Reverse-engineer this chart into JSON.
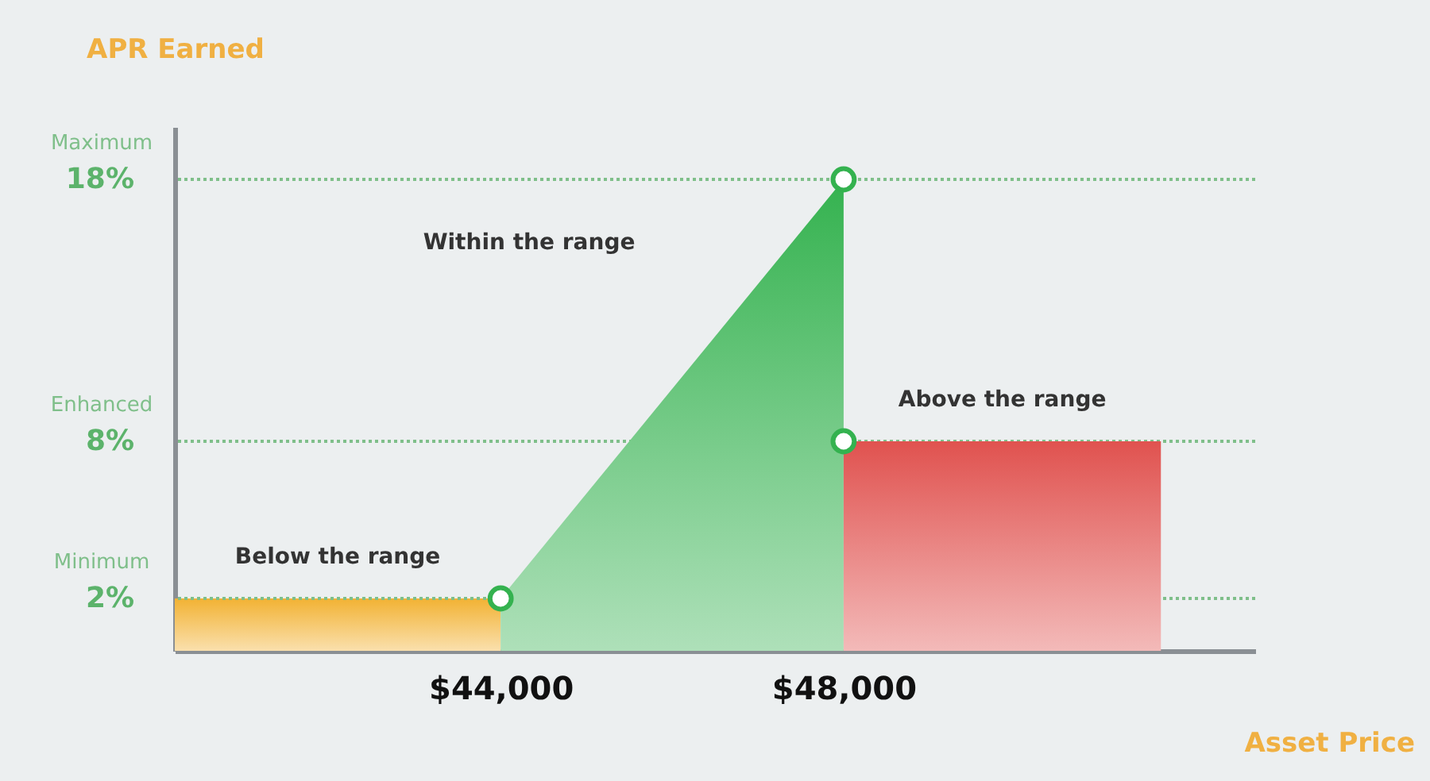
{
  "chart_data": {
    "type": "area",
    "xlabel": "Asset Price",
    "ylabel": "APR Earned",
    "xlim": [
      40200,
      52800
    ],
    "xticks": [
      {
        "value": 44000,
        "label": "$44,000"
      },
      {
        "value": 48000,
        "label": "$48,000"
      }
    ],
    "ylim": [
      0,
      20
    ],
    "yticks": [
      {
        "value": 2,
        "label": "2%"
      },
      {
        "value": 8,
        "label": "8%"
      },
      {
        "value": 18,
        "label": "18%"
      }
    ],
    "series": [
      {
        "color": "#f2b233",
        "x": [
          40200,
          44000
        ],
        "values": [
          2,
          2
        ]
      },
      {
        "color": "#34b24f",
        "x": [
          44000,
          48000
        ],
        "values": [
          2,
          18
        ]
      },
      {
        "color": "#e0524f",
        "x": [
          48000,
          51700
        ],
        "values": [
          8,
          8
        ]
      },
      {
        "type": "scatter",
        "marker": "circle",
        "color": "#34b24f",
        "x": [
          44000,
          48000,
          48000
        ],
        "values": [
          2,
          18,
          8
        ]
      }
    ],
    "ref_lines": [
      {
        "axis": "y",
        "value": 18,
        "label": "Maximum",
        "color": "#7fbf8a",
        "line_style": "dotted"
      },
      {
        "axis": "y",
        "value": 8,
        "label": "Enhanced",
        "color": "#7fbf8a",
        "line_style": "dotted"
      },
      {
        "axis": "y",
        "value": 2,
        "label": "Minimum",
        "color": "#7fbf8a",
        "line_style": "dotted"
      }
    ],
    "annotations": [
      "Below the range",
      "Within the range",
      "Above the range"
    ]
  }
}
